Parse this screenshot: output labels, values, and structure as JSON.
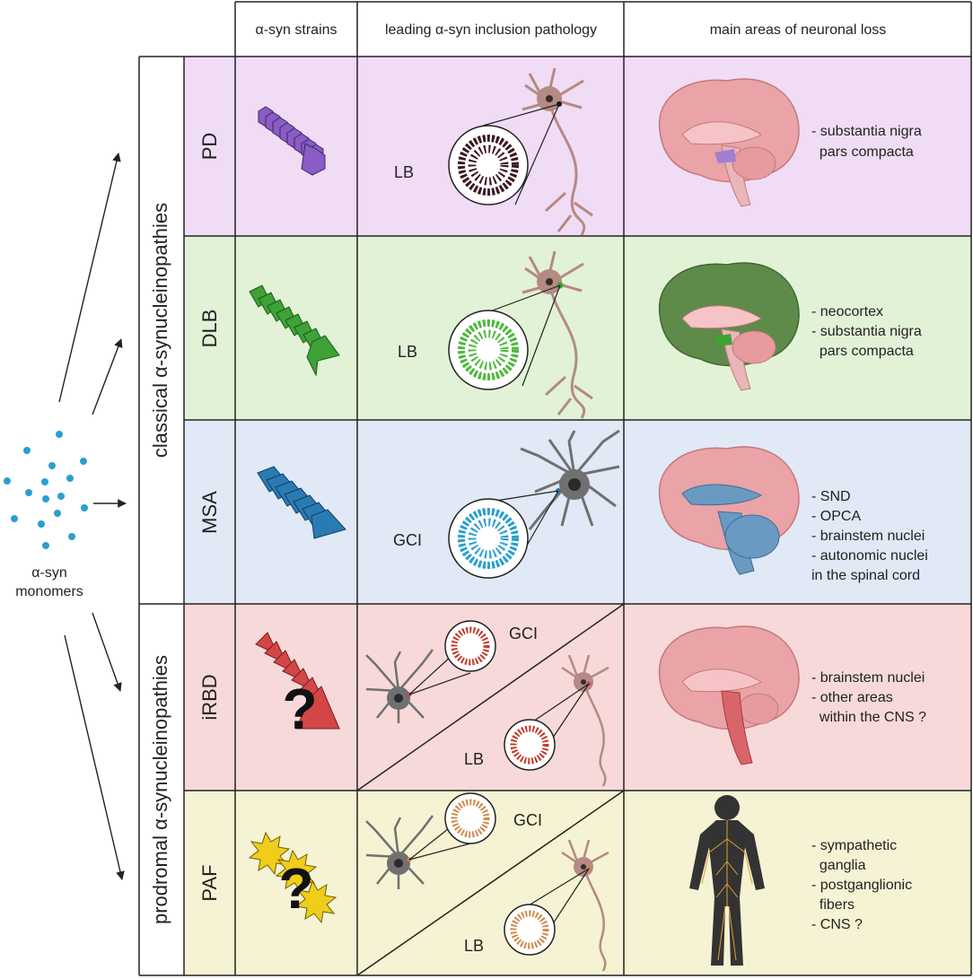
{
  "headers": {
    "strains": "α-syn strains",
    "pathology": "leading α-syn inclusion pathology",
    "loss": "main areas of neuronal loss"
  },
  "groups": {
    "classical": "classical α-synucleinopathies",
    "prodromal": "prodromal α-synucleinopathies"
  },
  "monomers": {
    "line1": "α-syn",
    "line2": "monomers"
  },
  "rows": [
    {
      "id": "PD",
      "label": "PD",
      "bg": "#f1dcf5",
      "accent": "#9467c7",
      "inclusions": [
        "LB"
      ],
      "areas": [
        "- substantia nigra",
        "  pars compacta"
      ]
    },
    {
      "id": "DLB",
      "label": "DLB",
      "bg": "#e2f2d7",
      "accent": "#3e9a33",
      "inclusions": [
        "LB"
      ],
      "areas": [
        "- neocortex",
        "- substantia nigra",
        "  pars compacta"
      ]
    },
    {
      "id": "MSA",
      "label": "MSA",
      "bg": "#e1e8f6",
      "accent": "#2a7bb3",
      "inclusions": [
        "GCI"
      ],
      "areas": [
        "- SND",
        "- OPCA",
        "- brainstem nuclei",
        "- autonomic nuclei",
        "in the spinal cord"
      ]
    },
    {
      "id": "iRBD",
      "label": "iRBD",
      "bg": "#f7d9d9",
      "accent": "#d24444",
      "inclusions": [
        "GCI",
        "LB"
      ],
      "areas": [
        "- brainstem nuclei",
        "- other areas",
        "  within the CNS ?"
      ]
    },
    {
      "id": "PAF",
      "label": "PAF",
      "bg": "#f5f3d3",
      "accent": "#e8c419",
      "inclusions": [
        "GCI",
        "LB"
      ],
      "areas": [
        "- sympathetic",
        "  ganglia",
        "- postganglionic",
        "  fibers",
        "- CNS ?"
      ]
    }
  ],
  "question_mark": "?"
}
